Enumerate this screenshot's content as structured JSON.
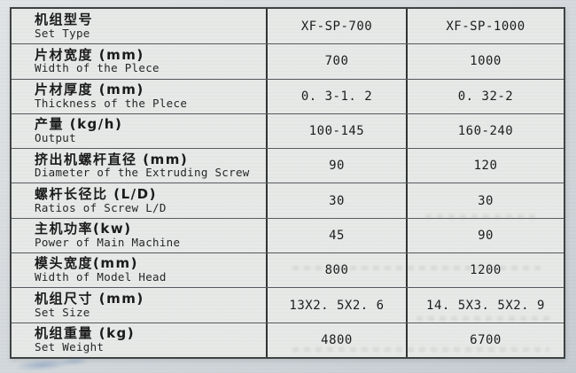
{
  "document": {
    "type": "scanned-specification-table",
    "colors": {
      "page_background": "#d3d8db",
      "cell_background": "#e7e9e7",
      "table_border": "#3a3d3c",
      "grid_line": "#53575a",
      "text": "#161616"
    },
    "table": {
      "rows": [
        {
          "zh": "机组型号",
          "en": "Set Type",
          "col1": "XF-SP-700",
          "col2": "XF-SP-1000"
        },
        {
          "zh": "片材宽度 (mm)",
          "en": "Width of the Plece",
          "col1": "700",
          "col2": "1000"
        },
        {
          "zh": "片材厚度 (mm)",
          "en": "Thickness of the Plece",
          "col1": "0. 3-1. 2",
          "col2": "0. 32-2"
        },
        {
          "zh": "产量 (kg/h)",
          "en": "Output",
          "col1": "100-145",
          "col2": "160-240"
        },
        {
          "zh": "挤出机螺杆直径 (mm)",
          "en": "Diameter of the Extruding Screw",
          "col1": "90",
          "col2": "120"
        },
        {
          "zh": "螺杆长径比 (L/D)",
          "en": "Ratios of Screw L/D",
          "col1": "30",
          "col2": "30"
        },
        {
          "zh": "主机功率(kw)",
          "en": "Power of Main Machine",
          "col1": "45",
          "col2": "90"
        },
        {
          "zh": "模头宽度(mm)",
          "en": "Width of Model Head",
          "col1": "800",
          "col2": "1200"
        },
        {
          "zh": "机组尺寸 (mm)",
          "en": "Set Size",
          "col1": "13X2. 5X2. 6",
          "col2": "14. 5X3. 5X2. 9"
        },
        {
          "zh": "机组重量 (kg)",
          "en": "Set Weight",
          "col1": "4800",
          "col2": "6700"
        }
      ]
    }
  }
}
